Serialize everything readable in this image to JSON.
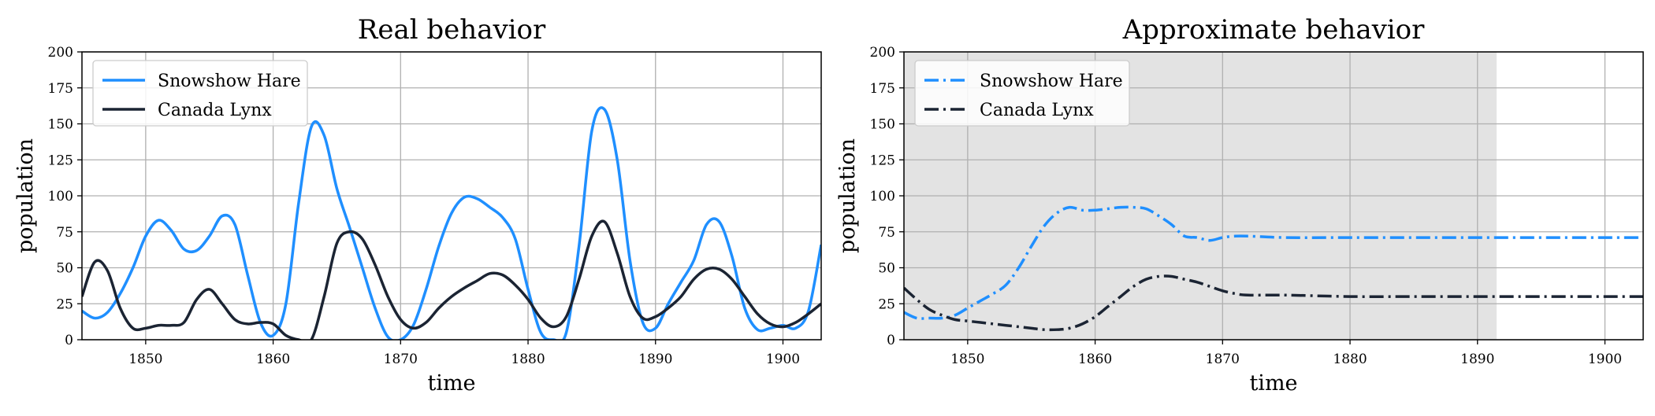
{
  "chart_data": [
    {
      "type": "line",
      "title": "Real behavior",
      "xlabel": "time",
      "ylabel": "population",
      "xlim": [
        1845,
        1903
      ],
      "ylim": [
        0,
        200
      ],
      "xticks": [
        1850,
        1860,
        1870,
        1880,
        1890,
        1900
      ],
      "yticks": [
        0,
        25,
        50,
        75,
        100,
        125,
        150,
        175,
        200
      ],
      "grid": true,
      "legend_position": "top-left",
      "shaded_region": null,
      "series": [
        {
          "name": "Snowshow Hare",
          "color": "#1f8fff",
          "style": "solid",
          "x": [
            1845,
            1846,
            1847,
            1848,
            1849,
            1850,
            1851,
            1852,
            1853,
            1854,
            1855,
            1856,
            1857,
            1858,
            1859,
            1860,
            1861,
            1862,
            1863,
            1864,
            1865,
            1866,
            1867,
            1868,
            1869,
            1870,
            1871,
            1872,
            1873,
            1874,
            1875,
            1876,
            1877,
            1878,
            1879,
            1880,
            1881,
            1882,
            1883,
            1884,
            1885,
            1886,
            1887,
            1888,
            1889,
            1890,
            1891,
            1892,
            1893,
            1894,
            1895,
            1896,
            1897,
            1898,
            1899,
            1900,
            1901,
            1902,
            1903
          ],
          "values": [
            20,
            15,
            19,
            32,
            50,
            72,
            83,
            76,
            63,
            62,
            72,
            86,
            80,
            45,
            12,
            3,
            25,
            95,
            148,
            142,
            105,
            78,
            50,
            22,
            2,
            0,
            10,
            35,
            65,
            88,
            99,
            98,
            92,
            85,
            70,
            35,
            5,
            0,
            5,
            65,
            145,
            160,
            125,
            55,
            12,
            8,
            25,
            40,
            55,
            80,
            82,
            58,
            22,
            7,
            8,
            10,
            8,
            20,
            66
          ]
        },
        {
          "name": "Canada Lynx",
          "color": "#1b2433",
          "style": "solid",
          "x": [
            1845,
            1846,
            1847,
            1848,
            1849,
            1850,
            1851,
            1852,
            1853,
            1854,
            1855,
            1856,
            1857,
            1858,
            1859,
            1860,
            1861,
            1862,
            1863,
            1864,
            1865,
            1866,
            1867,
            1868,
            1869,
            1870,
            1871,
            1872,
            1873,
            1874,
            1875,
            1876,
            1877,
            1878,
            1879,
            1880,
            1881,
            1882,
            1883,
            1884,
            1885,
            1886,
            1887,
            1888,
            1889,
            1890,
            1891,
            1892,
            1893,
            1894,
            1895,
            1896,
            1897,
            1898,
            1899,
            1900,
            1901,
            1902,
            1903
          ],
          "values": [
            30,
            54,
            48,
            22,
            8,
            8,
            10,
            10,
            12,
            28,
            35,
            25,
            14,
            11,
            12,
            11,
            3,
            0,
            0,
            30,
            67,
            75,
            70,
            52,
            30,
            14,
            8,
            12,
            22,
            30,
            36,
            41,
            46,
            45,
            38,
            28,
            15,
            9,
            16,
            42,
            72,
            82,
            60,
            30,
            15,
            16,
            22,
            30,
            42,
            49,
            49,
            42,
            30,
            18,
            11,
            9,
            12,
            18,
            25
          ]
        }
      ]
    },
    {
      "type": "line",
      "title": "Approximate behavior",
      "xlabel": "time",
      "ylabel": "population",
      "xlim": [
        1845,
        1903
      ],
      "ylim": [
        0,
        200
      ],
      "xticks": [
        1850,
        1860,
        1870,
        1880,
        1890,
        1900
      ],
      "yticks": [
        0,
        25,
        50,
        75,
        100,
        125,
        150,
        175,
        200
      ],
      "grid": true,
      "legend_position": "top-left",
      "shaded_region": [
        1845,
        1891.5
      ],
      "series": [
        {
          "name": "Snowshow Hare",
          "color": "#1f8fff",
          "style": "dashdot",
          "x": [
            1845,
            1846,
            1847,
            1848,
            1849,
            1850,
            1851,
            1852,
            1853,
            1854,
            1855,
            1856,
            1857,
            1858,
            1859,
            1860,
            1861,
            1862,
            1863,
            1864,
            1865,
            1866,
            1867,
            1868,
            1869,
            1870,
            1871,
            1872,
            1875,
            1880,
            1885,
            1890,
            1895,
            1900,
            1903
          ],
          "values": [
            19,
            15,
            15,
            15,
            17,
            22,
            27,
            32,
            38,
            50,
            65,
            79,
            88,
            92,
            90,
            90,
            91,
            92,
            92,
            91,
            86,
            80,
            72,
            71,
            69,
            71,
            72,
            72,
            71,
            71,
            71,
            71,
            71,
            71,
            71
          ]
        },
        {
          "name": "Canada Lynx",
          "color": "#1b2433",
          "style": "dashdot",
          "x": [
            1845,
            1846,
            1847,
            1848,
            1849,
            1850,
            1851,
            1852,
            1853,
            1854,
            1855,
            1856,
            1857,
            1858,
            1859,
            1860,
            1861,
            1862,
            1863,
            1864,
            1865,
            1866,
            1867,
            1868,
            1869,
            1870,
            1871,
            1872,
            1875,
            1880,
            1885,
            1890,
            1895,
            1900,
            1903
          ],
          "values": [
            36,
            28,
            21,
            17,
            14,
            13,
            12,
            11,
            10,
            9,
            8,
            7,
            7,
            8,
            11,
            16,
            23,
            30,
            37,
            42,
            44,
            44,
            42,
            40,
            37,
            34,
            32,
            31,
            31,
            30,
            30,
            30,
            30,
            30,
            30
          ]
        }
      ]
    }
  ]
}
